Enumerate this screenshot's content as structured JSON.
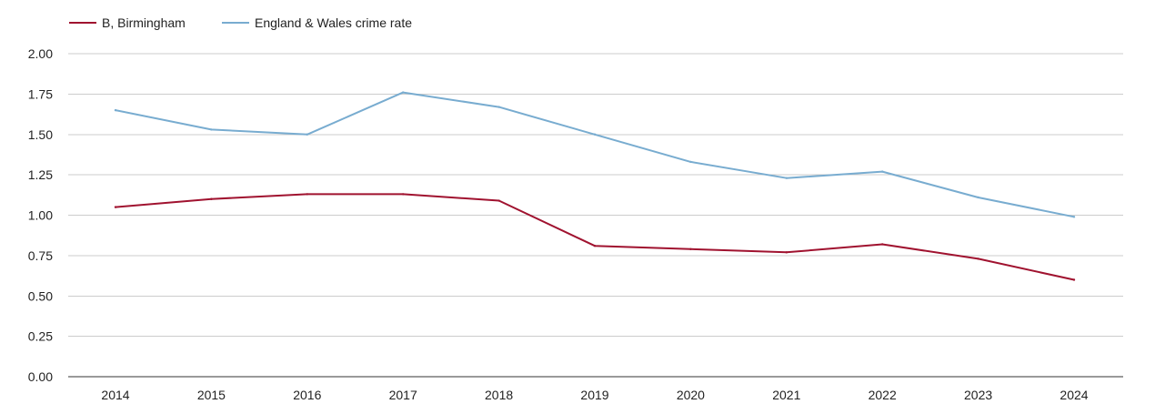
{
  "chart_data": {
    "type": "line",
    "x": [
      "2014",
      "2015",
      "2016",
      "2017",
      "2018",
      "2019",
      "2020",
      "2021",
      "2022",
      "2023",
      "2024"
    ],
    "series": [
      {
        "name": "B, Birmingham",
        "color": "#a0122f",
        "values": [
          1.05,
          1.1,
          1.13,
          1.13,
          1.09,
          0.81,
          0.79,
          0.77,
          0.82,
          0.73,
          0.6
        ]
      },
      {
        "name": "England & Wales crime rate",
        "color": "#78acd0",
        "values": [
          1.65,
          1.53,
          1.5,
          1.76,
          1.67,
          1.5,
          1.33,
          1.23,
          1.27,
          1.11,
          0.99
        ]
      }
    ],
    "yticks": [
      "0.00",
      "0.25",
      "0.50",
      "0.75",
      "1.00",
      "1.25",
      "1.50",
      "1.75",
      "2.00"
    ],
    "ylim": [
      0,
      2
    ],
    "grid": true,
    "legend_position": "top-left"
  }
}
